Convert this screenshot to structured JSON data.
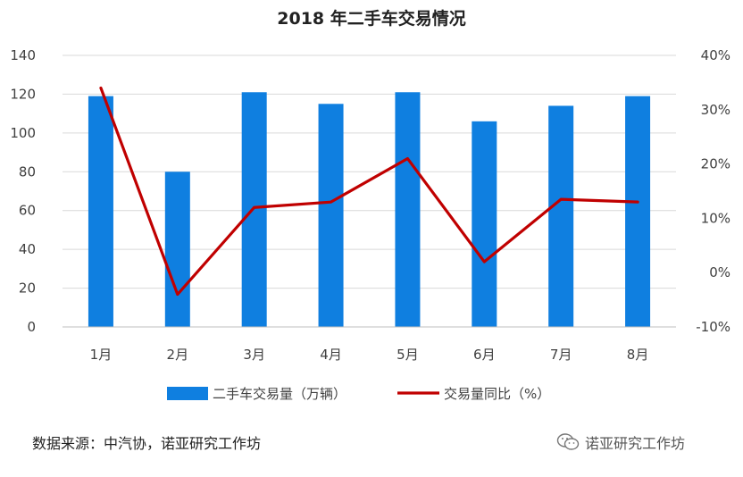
{
  "chart_data": {
    "type": "bar",
    "title": "2018 年二手车交易情况",
    "categories": [
      "1月",
      "2月",
      "3月",
      "4月",
      "5月",
      "6月",
      "7月",
      "8月"
    ],
    "series": [
      {
        "name": "二手车交易量（万辆）",
        "type": "bar",
        "axis": "left",
        "color": "#0f7fe0",
        "values": [
          119,
          80,
          121,
          115,
          121,
          106,
          114,
          119
        ]
      },
      {
        "name": "交易量同比（%）",
        "type": "line",
        "axis": "right",
        "color": "#c00000",
        "values": [
          34,
          -4,
          12,
          13,
          21,
          2,
          13.5,
          13
        ]
      }
    ],
    "ylim_left": [
      0,
      140
    ],
    "yticks_left": [
      0,
      20,
      40,
      60,
      80,
      100,
      120,
      140
    ],
    "ylim_right": [
      -10,
      40
    ],
    "yticks_right": [
      "-10%",
      "0%",
      "10%",
      "20%",
      "30%",
      "40%"
    ],
    "legend_position": "bottom",
    "grid": true
  },
  "footer": {
    "source": "数据来源：中汽协，诺亚研究工作坊",
    "watermark": "诺亚研究工作坊",
    "watermark_icon": "wechat-icon"
  }
}
